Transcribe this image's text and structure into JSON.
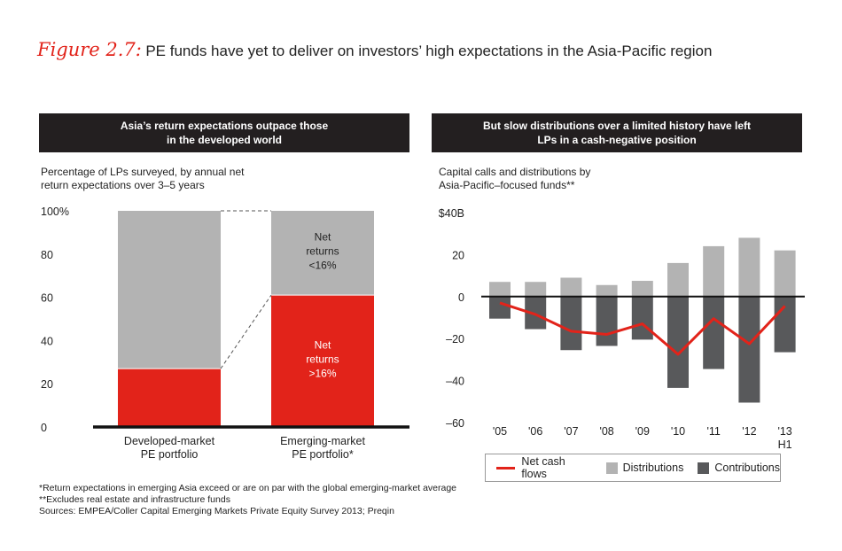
{
  "figure": {
    "label": "Figure 2.7:",
    "title": "PE funds have yet to deliver on investors’ high expectations in the Asia-Pacific region"
  },
  "left_panel": {
    "header_line1": "Asia’s return expectations outpace those",
    "header_line2": "in the developed world",
    "subtitle_line1": "Percentage of LPs surveyed, by annual net",
    "subtitle_line2": "return expectations over 3–5 years"
  },
  "right_panel": {
    "header_line1": "But slow distributions over a limited history have left",
    "header_line2": "LPs in a cash-negative position",
    "subtitle_line1": "Capital calls and distributions by",
    "subtitle_line2": "Asia-Pacific–focused funds**"
  },
  "legend": {
    "net_cash_flows": "Net cash flows",
    "distributions": "Distributions",
    "contributions": "Contributions"
  },
  "notes": {
    "note1": "*Return expectations in emerging Asia exceed or are on par with the global emerging-market average",
    "note2": "**Excludes real estate and infrastructure funds",
    "sources": "Sources: EMPEA/Coller Capital Emerging Markets Private Equity Survey 2013; Preqin"
  },
  "colors": {
    "red": "#e2231a",
    "gray_light": "#b3b3b3",
    "gray_dark": "#58595b",
    "header_bg": "#231f20"
  },
  "chart_data": [
    {
      "type": "bar",
      "stacked": true,
      "categories": [
        "Developed-market PE portfolio",
        "Emerging-market PE portfolio*"
      ],
      "category_lines": [
        [
          "Developed-market",
          "PE portfolio"
        ],
        [
          "Emerging-market",
          "PE portfolio*"
        ]
      ],
      "series": [
        {
          "name": "Net returns >16%",
          "name_lines": [
            "Net",
            "returns",
            ">16%"
          ],
          "values": [
            27,
            61
          ],
          "color": "#e2231a"
        },
        {
          "name": "Net returns <16%",
          "name_lines": [
            "Net",
            "returns",
            "<16%"
          ],
          "values": [
            73,
            39
          ],
          "color": "#b3b3b3"
        }
      ],
      "ylim": [
        0,
        100
      ],
      "yticks": [
        0,
        20,
        40,
        60,
        80,
        100
      ],
      "ytick_labels": [
        "0",
        "20",
        "40",
        "60",
        "80",
        "100%"
      ]
    },
    {
      "type": "bar",
      "categories": [
        "'05",
        "'06",
        "'07",
        "'08",
        "'09",
        "'10",
        "'11",
        "'12",
        "'13 H1"
      ],
      "category_lines": [
        [
          "'05"
        ],
        [
          "'06"
        ],
        [
          "'07"
        ],
        [
          "'08"
        ],
        [
          "'09"
        ],
        [
          "'10"
        ],
        [
          "'11"
        ],
        [
          "'12"
        ],
        [
          "'13",
          "H1"
        ]
      ],
      "series": [
        {
          "name": "Distributions",
          "type": "bar",
          "values": [
            7,
            7,
            9,
            5.5,
            7.5,
            16,
            24,
            28,
            22
          ],
          "color": "#b3b3b3"
        },
        {
          "name": "Contributions",
          "type": "bar",
          "values": [
            -10.5,
            -15.5,
            -25.5,
            -23.5,
            -20.5,
            -43.5,
            -34.5,
            -50.5,
            -26.5
          ],
          "color": "#58595b"
        },
        {
          "name": "Net cash flows",
          "type": "line",
          "values": [
            -3,
            -8.5,
            -16.5,
            -18,
            -13,
            -27.5,
            -10.5,
            -22.5,
            -4.5
          ],
          "color": "#e2231a"
        }
      ],
      "ylim": [
        -60,
        40
      ],
      "yticks": [
        -60,
        -40,
        -20,
        0,
        20,
        40
      ],
      "ytick_labels": [
        "–60",
        "–40",
        "–20",
        "0",
        "20",
        "$40B"
      ]
    }
  ]
}
